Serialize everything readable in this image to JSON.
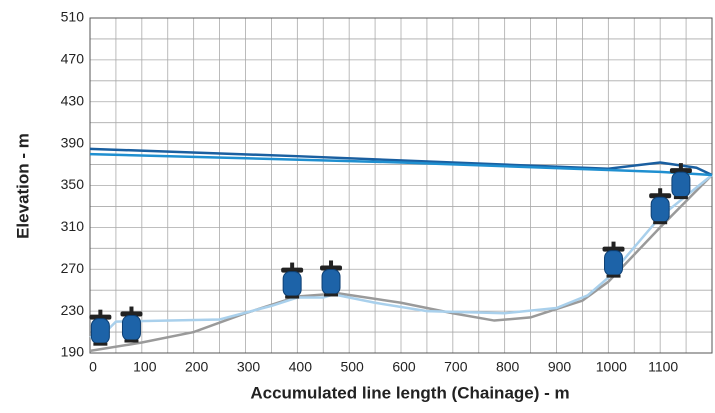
{
  "chart_data": {
    "type": "line",
    "xlabel": "Accumulated line length (Chainage) - m",
    "ylabel": "Elevation - m",
    "xlim": [
      0,
      1200
    ],
    "ylim": [
      190,
      510
    ],
    "xticks": [
      0,
      100,
      200,
      300,
      400,
      500,
      600,
      700,
      800,
      900,
      1000,
      1100
    ],
    "yticks": [
      190,
      230,
      270,
      310,
      350,
      390,
      430,
      470,
      510
    ],
    "x_minor_grid": [
      50,
      150,
      250,
      350,
      450,
      550,
      650,
      750,
      850,
      950,
      1050,
      1150
    ],
    "y_minor_grid": [
      210,
      250,
      290,
      330,
      370,
      410,
      450,
      490
    ],
    "grid": true,
    "series": [
      {
        "color": "#9a9a9a",
        "x": [
          0,
          100,
          200,
          300,
          400,
          480,
          600,
          700,
          780,
          850,
          950,
          1000,
          1100,
          1200
        ],
        "values": [
          192,
          200,
          210,
          228,
          244,
          247,
          238,
          228,
          221,
          224,
          240,
          258,
          310,
          360
        ]
      },
      {
        "color": "#a9d0ec",
        "x": [
          0,
          30,
          50,
          250,
          350,
          400,
          450,
          470,
          550,
          650,
          800,
          900,
          960,
          1000,
          1100,
          1200
        ],
        "values": [
          205,
          210,
          220,
          222,
          235,
          243,
          243,
          246,
          238,
          230,
          228,
          233,
          245,
          262,
          320,
          360
        ]
      },
      {
        "color": "#1a5fa0",
        "x": [
          0,
          400,
          1000,
          1100,
          1170,
          1200
        ],
        "values": [
          385,
          378,
          366,
          372,
          367,
          360
        ]
      },
      {
        "color": "#1f8fd0",
        "x": [
          0,
          600,
          1100,
          1200
        ],
        "values": [
          380,
          372,
          363,
          360
        ]
      }
    ],
    "valves": {
      "color": "#1d63a8",
      "x": [
        20,
        80,
        390,
        465,
        1010,
        1100,
        1140
      ],
      "values": [
        197,
        200,
        242,
        244,
        262,
        313,
        337
      ]
    }
  }
}
